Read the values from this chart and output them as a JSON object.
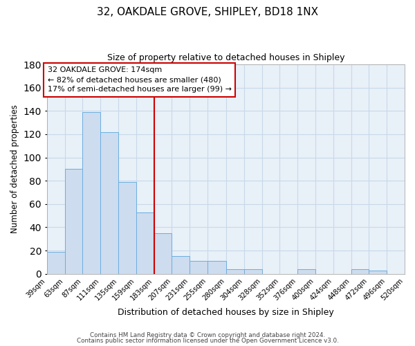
{
  "title": "32, OAKDALE GROVE, SHIPLEY, BD18 1NX",
  "subtitle": "Size of property relative to detached houses in Shipley",
  "xlabel": "Distribution of detached houses by size in Shipley",
  "ylabel": "Number of detached properties",
  "bar_values": [
    19,
    90,
    139,
    122,
    79,
    53,
    35,
    15,
    11,
    11,
    4,
    4,
    0,
    0,
    4,
    0,
    0,
    4,
    3,
    0
  ],
  "bin_edges": [
    39,
    63,
    87,
    111,
    135,
    159,
    183,
    207,
    231,
    255,
    280,
    304,
    328,
    352,
    376,
    400,
    424,
    448,
    472,
    496,
    520
  ],
  "tick_labels": [
    "39sqm",
    "63sqm",
    "87sqm",
    "111sqm",
    "135sqm",
    "159sqm",
    "183sqm",
    "207sqm",
    "231sqm",
    "255sqm",
    "280sqm",
    "304sqm",
    "328sqm",
    "352sqm",
    "376sqm",
    "400sqm",
    "424sqm",
    "448sqm",
    "472sqm",
    "496sqm",
    "520sqm"
  ],
  "bar_color": "#cddcee",
  "bar_edge_color": "#6aaee0",
  "vline_color": "#cc0000",
  "annotation_text": "32 OAKDALE GROVE: 174sqm\n← 82% of detached houses are smaller (480)\n17% of semi-detached houses are larger (99) →",
  "annotation_box_color": "#cc0000",
  "ylim": [
    0,
    180
  ],
  "yticks": [
    0,
    20,
    40,
    60,
    80,
    100,
    120,
    140,
    160,
    180
  ],
  "footer_line1": "Contains HM Land Registry data © Crown copyright and database right 2024.",
  "footer_line2": "Contains public sector information licensed under the Open Government Licence v3.0.",
  "background_color": "#ffffff",
  "grid_color": "#c8d8e8",
  "ax_bg_color": "#e8f0f8"
}
